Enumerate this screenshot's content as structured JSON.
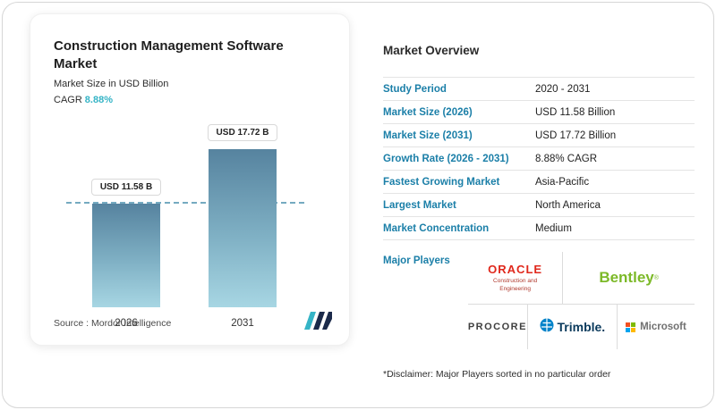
{
  "left_card": {
    "title": "Construction Management Software Market",
    "subtitle": "Market Size in USD Billion",
    "cagr_label": "CAGR",
    "cagr_value": "8.88%",
    "source_label": "Source :  Mordor Intelligence"
  },
  "chart_data": {
    "type": "bar",
    "categories": [
      "2026",
      "2031"
    ],
    "values": [
      11.58,
      17.72
    ],
    "bar_labels": [
      "USD 11.58 B",
      "USD 17.72 B"
    ],
    "title": "Construction Management Software Market",
    "ylabel": "Market Size in USD Billion",
    "ylim": [
      0,
      19
    ],
    "reference_line": 11.58,
    "bar_gradient_top": "#56839f",
    "bar_gradient_bottom": "#a7d6e3",
    "reference_line_color": "#5d9cb6"
  },
  "overview": {
    "title": "Market Overview",
    "rows": [
      {
        "label": "Study Period",
        "value": "2020 - 2031"
      },
      {
        "label": "Market Size (2026)",
        "value": "USD 11.58 Billion"
      },
      {
        "label": "Market Size (2031)",
        "value": "USD 17.72 Billion"
      },
      {
        "label": "Growth Rate (2026 - 2031)",
        "value": "8.88% CAGR"
      },
      {
        "label": "Fastest Growing Market",
        "value": "Asia-Pacific"
      },
      {
        "label": "Largest Market",
        "value": "North America"
      },
      {
        "label": "Market Concentration",
        "value": "Medium"
      }
    ],
    "major_players_label": "Major Players",
    "players": {
      "oracle": {
        "name": "ORACLE",
        "subtext": "Construction and Engineering"
      },
      "bentley": {
        "name": "Bentley"
      },
      "procore": {
        "name": "PROCORE"
      },
      "trimble": {
        "name": "Trimble."
      },
      "microsoft": {
        "name": "Microsoft"
      }
    },
    "disclaimer": "*Disclaimer: Major Players sorted in no particular order"
  },
  "colors": {
    "label_blue": "#1b7fa8",
    "cagr_teal": "#35b4c6",
    "oracle_red": "#e0281c",
    "bentley_green": "#7cb928",
    "trimble_navy": "#0a3a5c",
    "trimble_blue": "#0082c9",
    "microsoft_gray": "#717171",
    "ms_red": "#f25022",
    "ms_green": "#7fba00",
    "ms_blue": "#00a4ef",
    "ms_yellow": "#ffb900"
  }
}
